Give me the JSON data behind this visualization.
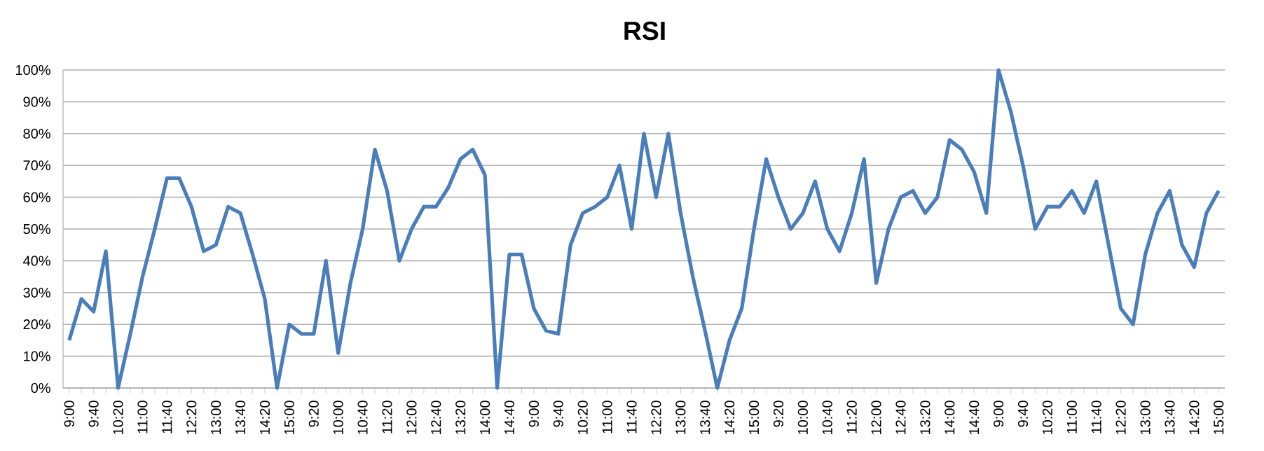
{
  "chart_data": {
    "type": "line",
    "title": "RSI",
    "categories": [
      "9:00",
      null,
      "9:40",
      null,
      "10:20",
      null,
      "11:00",
      null,
      "11:40",
      null,
      "12:20",
      null,
      "13:00",
      null,
      "13:40",
      null,
      "14:20",
      null,
      "15:00",
      null,
      "9:20",
      null,
      "10:00",
      null,
      "10:40",
      null,
      "11:20",
      null,
      "12:00",
      null,
      "12:40",
      null,
      "13:20",
      null,
      "14:00",
      null,
      "14:40",
      null,
      "9:00",
      null,
      "9:40",
      null,
      "10:20",
      null,
      "11:00",
      null,
      "11:40",
      null,
      "12:20",
      null,
      "13:00",
      null,
      "13:40",
      null,
      "14:20",
      null,
      "15:00",
      null,
      "9:20",
      null,
      "10:00",
      null,
      "10:40",
      null,
      "11:20",
      null,
      "12:00",
      null,
      "12:40",
      null,
      "13:20",
      null,
      "14:00",
      null,
      "14:40",
      null,
      "9:00",
      null,
      "9:40",
      null,
      "10:20",
      null,
      "11:00",
      null,
      "11:40",
      null,
      "12:20",
      null,
      "13:00",
      null,
      "13:40",
      null,
      "14:20",
      null,
      "15:00"
    ],
    "series": [
      {
        "color": "#4a7ebb",
        "values": [
          15,
          28,
          24,
          43,
          0,
          17,
          35,
          50,
          66,
          66,
          57,
          43,
          45,
          57,
          55,
          42,
          28,
          0,
          20,
          17,
          17,
          40,
          11,
          33,
          50,
          75,
          62,
          40,
          50,
          57,
          57,
          63,
          72,
          75,
          67,
          0,
          42,
          42,
          25,
          18,
          17,
          45,
          55,
          57,
          60,
          70,
          50,
          80,
          60,
          80,
          55,
          35,
          18,
          0,
          15,
          25,
          50,
          72,
          60,
          50,
          55,
          65,
          50,
          43,
          55,
          72,
          33,
          50,
          60,
          62,
          55,
          60,
          78,
          75,
          68,
          55,
          100,
          87,
          70,
          50,
          57,
          57,
          62,
          55,
          65,
          45,
          25,
          20,
          42,
          55,
          62,
          45,
          38,
          55,
          62
        ]
      }
    ],
    "ylim": [
      0,
      100
    ],
    "yticks": [
      {
        "value": 0,
        "label": "0%"
      },
      {
        "value": 10,
        "label": "10%"
      },
      {
        "value": 20,
        "label": "20%"
      },
      {
        "value": 30,
        "label": "30%"
      },
      {
        "value": 40,
        "label": "40%"
      },
      {
        "value": 50,
        "label": "50%"
      },
      {
        "value": 60,
        "label": "60%"
      },
      {
        "value": 70,
        "label": "70%"
      },
      {
        "value": 80,
        "label": "80%"
      },
      {
        "value": 90,
        "label": "90%"
      },
      {
        "value": 100,
        "label": "100%"
      }
    ],
    "grid": "y",
    "marker": "none",
    "line_style": "solid"
  }
}
